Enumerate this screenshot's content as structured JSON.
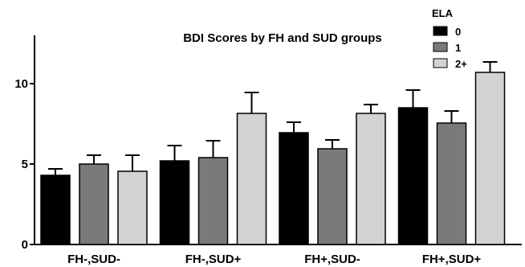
{
  "chart_data": {
    "type": "bar",
    "title": "BDI Scores by FH and SUD groups",
    "xlabel": "",
    "ylabel": "",
    "ylim": [
      0,
      13
    ],
    "yticks": [
      0,
      5,
      10
    ],
    "categories": [
      "FH-,SUD-",
      "FH-,SUD+",
      "FH+,SUD-",
      "FH+,SUD+"
    ],
    "legend": {
      "title": "ELA",
      "position": "top-right"
    },
    "grid": false,
    "series": [
      {
        "name": "0",
        "color": "#000000",
        "values": [
          4.3,
          5.2,
          6.95,
          8.5
        ],
        "errors": [
          0.4,
          0.95,
          0.65,
          1.1
        ]
      },
      {
        "name": "1",
        "color": "#7a7a7a",
        "values": [
          5.0,
          5.4,
          5.95,
          7.55
        ],
        "errors": [
          0.55,
          1.05,
          0.55,
          0.75
        ]
      },
      {
        "name": "2+",
        "color": "#d3d3d3",
        "values": [
          4.55,
          8.15,
          8.15,
          10.7
        ],
        "errors": [
          1.0,
          1.3,
          0.55,
          0.65
        ]
      }
    ]
  }
}
